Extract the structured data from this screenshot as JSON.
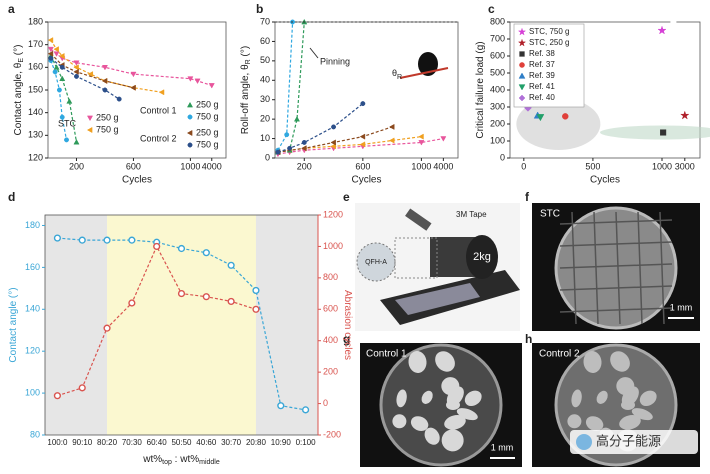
{
  "panel_labels": [
    "a",
    "b",
    "c",
    "d",
    "e",
    "f",
    "g",
    "h"
  ],
  "chart_data": [
    {
      "type": "line",
      "xlabel": "Cycles",
      "ylabel": [
        "Contact angle, θ",
        "E",
        " (°)"
      ],
      "xlim": [
        0,
        4500
      ],
      "xticks": [
        200,
        600,
        1000,
        4000
      ],
      "x_axis_break": true,
      "ylim": [
        120,
        180
      ],
      "yticks": [
        120,
        130,
        140,
        150,
        160,
        170,
        180
      ],
      "groups": [
        {
          "name": "STC",
          "series": [
            {
              "name": "250 g",
              "color": "#e8559c",
              "marker": "triangle-down",
              "x": [
                20,
                60,
                100,
                200,
                400,
                600,
                1000,
                2000,
                4000
              ],
              "values": [
                168,
                166,
                164,
                162,
                160,
                157,
                155,
                154,
                152
              ]
            },
            {
              "name": "750 g",
              "color": "#f0a020",
              "marker": "triangle-left",
              "x": [
                20,
                60,
                100,
                200,
                300,
                400,
                600,
                800
              ],
              "values": [
                172,
                168,
                165,
                160,
                157,
                154,
                151,
                149
              ]
            }
          ]
        },
        {
          "name": "Control 1",
          "series": [
            {
              "name": "250 g",
              "color": "#2e9a5a",
              "marker": "triangle-up",
              "x": [
                20,
                60,
                100,
                150,
                200
              ],
              "values": [
                165,
                160,
                155,
                145,
                127
              ]
            },
            {
              "name": "750 g",
              "color": "#2fa8e0",
              "marker": "circle",
              "x": [
                20,
                50,
                80,
                100,
                130
              ],
              "values": [
                163,
                158,
                150,
                138,
                128
              ]
            }
          ]
        },
        {
          "name": "Control 2",
          "series": [
            {
              "name": "250 g",
              "color": "#8b4a1e",
              "marker": "triangle-left",
              "x": [
                20,
                100,
                200,
                400,
                600
              ],
              "values": [
                166,
                161,
                158,
                154,
                151
              ]
            },
            {
              "name": "750 g",
              "color": "#2c4f8a",
              "marker": "circle",
              "x": [
                20,
                100,
                200,
                400,
                500
              ],
              "values": [
                164,
                160,
                156,
                150,
                146
              ]
            }
          ]
        }
      ]
    },
    {
      "type": "line",
      "xlabel": "Cycles",
      "ylabel": [
        "Roll-off angle, θ",
        "R",
        " (°)"
      ],
      "xlim": [
        0,
        4500
      ],
      "xticks": [
        200,
        600,
        1000,
        4000
      ],
      "x_axis_break": true,
      "ylim": [
        0,
        70
      ],
      "yticks": [
        0,
        10,
        20,
        30,
        40,
        50,
        60,
        70
      ],
      "annotation": "Pinning",
      "inset_label": [
        "θ",
        "R"
      ],
      "series": [
        {
          "color": "#e8559c",
          "marker": "triangle-down",
          "x": [
            20,
            100,
            200,
            400,
            600,
            1000,
            4000
          ],
          "values": [
            2,
            3,
            4,
            5,
            6,
            8,
            10
          ]
        },
        {
          "color": "#f0a020",
          "marker": "triangle-left",
          "x": [
            20,
            100,
            200,
            400,
            600,
            800,
            1000
          ],
          "values": [
            3,
            4,
            5,
            6,
            7,
            9,
            11
          ]
        },
        {
          "color": "#2e9a5a",
          "marker": "triangle-up",
          "x": [
            20,
            100,
            150,
            200
          ],
          "values": [
            3,
            4,
            20,
            70
          ]
        },
        {
          "color": "#2fa8e0",
          "marker": "circle",
          "x": [
            20,
            80,
            120
          ],
          "values": [
            4,
            12,
            70
          ]
        },
        {
          "color": "#8b4a1e",
          "marker": "triangle-left",
          "x": [
            20,
            200,
            400,
            600,
            800
          ],
          "values": [
            3,
            5,
            8,
            11,
            16
          ]
        },
        {
          "color": "#2c4f8a",
          "marker": "circle",
          "x": [
            20,
            100,
            200,
            400,
            600
          ],
          "values": [
            3,
            5,
            8,
            16,
            28
          ]
        }
      ]
    },
    {
      "type": "scatter",
      "xlabel": "Cycles",
      "ylabel": [
        "Critical failure load (g)"
      ],
      "xlim": [
        -100,
        3300
      ],
      "xticks": [
        0,
        500,
        1000,
        3000
      ],
      "x_axis_break": true,
      "ylim": [
        0,
        800
      ],
      "yticks": [
        0,
        100,
        200,
        300,
        400,
        500,
        600,
        700,
        800
      ],
      "legend": "top-left",
      "series": [
        {
          "name": "STC, 750 g",
          "color": "#d63fd6",
          "marker": "star",
          "x": [
            1000
          ],
          "values": [
            750
          ]
        },
        {
          "name": "STC, 250 g",
          "color": "#b0202a",
          "marker": "star",
          "x": [
            3000
          ],
          "values": [
            250
          ]
        },
        {
          "name": "Ref. 38",
          "color": "#333333",
          "marker": "square",
          "x": [
            1100
          ],
          "values": [
            150
          ]
        },
        {
          "name": "Ref. 37",
          "color": "#e0403a",
          "marker": "circle",
          "x": [
            300
          ],
          "values": [
            245
          ]
        },
        {
          "name": "Ref. 39",
          "color": "#2f7fc8",
          "marker": "triangle-up",
          "x": [
            100
          ],
          "values": [
            250
          ]
        },
        {
          "name": "Ref. 41",
          "color": "#22a06a",
          "marker": "triangle-down",
          "x": [
            120
          ],
          "values": [
            240
          ]
        },
        {
          "name": "Ref. 40",
          "color": "#b070d8",
          "marker": "diamond",
          "x": [
            30
          ],
          "values": [
            295
          ]
        }
      ]
    },
    {
      "type": "line",
      "xlabel": [
        "wt%",
        "top",
        " : wt%",
        "middle"
      ],
      "ylabel": [
        "Contact angle (°)"
      ],
      "y2label": [
        "Abrasion cycles"
      ],
      "categories": [
        "100:0",
        "90:10",
        "80:20",
        "70:30",
        "60:40",
        "50:50",
        "40:60",
        "30:70",
        "20:80",
        "10:90",
        "0:100"
      ],
      "ylim": [
        80,
        185
      ],
      "yticks": [
        80,
        100,
        120,
        140,
        160,
        180
      ],
      "ycolor": "#3aa6d6",
      "y2lim": [
        -200,
        1200
      ],
      "y2ticks": [
        -200,
        0,
        200,
        400,
        600,
        800,
        1000,
        1200
      ],
      "y2color": "#d9544f",
      "series": [
        {
          "color": "#3aa6d6",
          "marker": "circle",
          "values": [
            174,
            173,
            173,
            173,
            172,
            169,
            167,
            161,
            149,
            94,
            92
          ]
        },
        {
          "color": "#d9544f",
          "marker": "circle",
          "axis": "y2",
          "values": [
            50,
            100,
            480,
            640,
            1000,
            700,
            680,
            650,
            600,
            null,
            null
          ]
        }
      ]
    }
  ],
  "images": {
    "e": [
      "3M Tape",
      "2kg",
      "QFH-A"
    ],
    "f": [
      "STC",
      "1 mm"
    ],
    "g": [
      "Control 1",
      "1 mm"
    ],
    "h": [
      "Control 2"
    ]
  },
  "watermark": "高分子能源"
}
